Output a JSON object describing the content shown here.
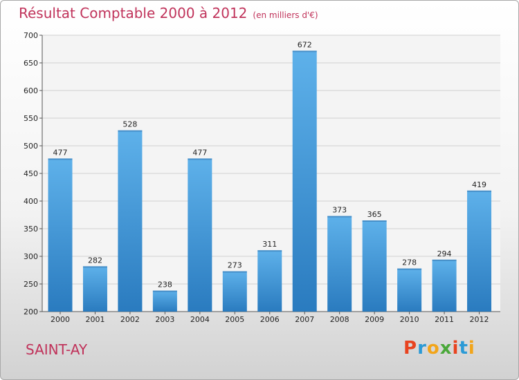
{
  "title": "Résultat Comptable 2000 à 2012",
  "subtitle": "(en milliers d'€)",
  "place": "SAINT-AY",
  "logo_text": "Proxiti",
  "colors": {
    "bar_top": "#5eb1ea",
    "bar_bottom": "#2a7bbf",
    "title": "#c0325a"
  },
  "chart_data": {
    "type": "bar",
    "title": "Résultat Comptable 2000 à 2012",
    "subtitle": "(en milliers d'€)",
    "xlabel": "",
    "ylabel": "",
    "categories": [
      "2000",
      "2001",
      "2002",
      "2003",
      "2004",
      "2005",
      "2006",
      "2007",
      "2008",
      "2009",
      "2010",
      "2011",
      "2012"
    ],
    "values": [
      477,
      282,
      528,
      238,
      477,
      273,
      311,
      672,
      373,
      365,
      278,
      294,
      419
    ],
    "ylim": [
      200,
      700
    ],
    "yticks": [
      200,
      250,
      300,
      350,
      400,
      450,
      500,
      550,
      600,
      650,
      700
    ],
    "grid": true,
    "legend": "none"
  }
}
